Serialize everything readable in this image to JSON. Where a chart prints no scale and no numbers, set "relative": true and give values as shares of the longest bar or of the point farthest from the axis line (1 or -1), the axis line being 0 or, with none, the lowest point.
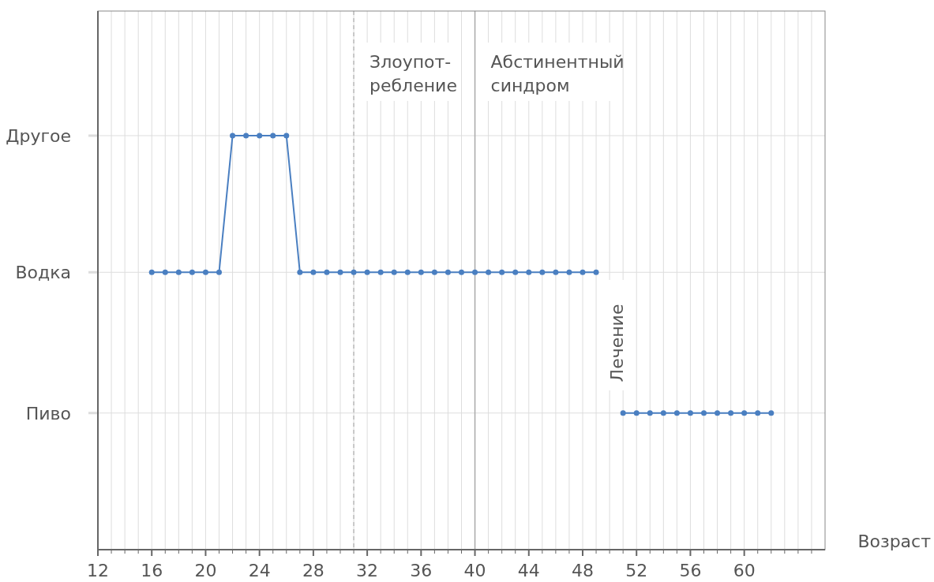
{
  "chart_data": {
    "type": "line",
    "xlabel": "Возраст",
    "color": "#4a7fc1",
    "marker": "circle",
    "line_style": "solid",
    "grid": "x",
    "x": [
      16,
      17,
      18,
      19,
      20,
      21,
      22,
      23,
      24,
      25,
      26,
      27,
      28,
      29,
      30,
      31,
      32,
      33,
      34,
      35,
      36,
      37,
      38,
      39,
      40,
      41,
      42,
      43,
      44,
      45,
      46,
      47,
      48,
      49,
      50,
      51,
      52,
      53,
      54,
      55,
      56,
      57,
      58,
      59,
      60,
      61,
      62
    ],
    "values": [
      0.67,
      0.67,
      0.67,
      0.67,
      0.67,
      0.67,
      1,
      1,
      1,
      1,
      1,
      0.67,
      0.67,
      0.67,
      0.67,
      0.67,
      0.67,
      0.67,
      0.67,
      0.67,
      0.67,
      0.67,
      0.67,
      0.67,
      0.67,
      0.67,
      0.67,
      0.67,
      0.67,
      0.67,
      0.67,
      0.67,
      0.67,
      0.67,
      null,
      0.33,
      0.33,
      0.33,
      0.33,
      0.33,
      0.33,
      0.33,
      0.33,
      0.33,
      0.33,
      0.33,
      0.33
    ],
    "relative": true,
    "xlim": [
      12,
      66
    ],
    "xticks": [
      12,
      {
        "value": 13,
        "label": null
      },
      {
        "value": 14,
        "label": null
      },
      {
        "value": 15,
        "label": null
      },
      16,
      {
        "value": 17,
        "label": null
      },
      {
        "value": 18,
        "label": null
      },
      {
        "value": 19,
        "label": null
      },
      20,
      {
        "value": 21,
        "label": null
      },
      {
        "value": 22,
        "label": null
      },
      {
        "value": 23,
        "label": null
      },
      24,
      {
        "value": 25,
        "label": null
      },
      {
        "value": 26,
        "label": null
      },
      {
        "value": 27,
        "label": null
      },
      28,
      {
        "value": 29,
        "label": null
      },
      {
        "value": 30,
        "label": null
      },
      {
        "value": 31,
        "label": null
      },
      32,
      {
        "value": 33,
        "label": null
      },
      {
        "value": 34,
        "label": null
      },
      {
        "value": 35,
        "label": null
      },
      36,
      {
        "value": 37,
        "label": null
      },
      {
        "value": 38,
        "label": null
      },
      {
        "value": 39,
        "label": null
      },
      40,
      {
        "value": 41,
        "label": null
      },
      {
        "value": 42,
        "label": null
      },
      {
        "value": 43,
        "label": null
      },
      44,
      {
        "value": 45,
        "label": null
      },
      {
        "value": 46,
        "label": null
      },
      {
        "value": 47,
        "label": null
      },
      48,
      {
        "value": 49,
        "label": null
      },
      {
        "value": 50,
        "label": null
      },
      {
        "value": 51,
        "label": null
      },
      52,
      {
        "value": 53,
        "label": null
      },
      {
        "value": 54,
        "label": null
      },
      {
        "value": 55,
        "label": null
      },
      56,
      {
        "value": 57,
        "label": null
      },
      {
        "value": 58,
        "label": null
      },
      {
        "value": 59,
        "label": null
      },
      60,
      {
        "value": 61,
        "label": null
      },
      {
        "value": 62,
        "label": null
      },
      {
        "value": 63,
        "label": null
      },
      {
        "value": 64,
        "label": null
      },
      {
        "value": 65,
        "label": null
      }
    ],
    "ref_lines": [
      {
        "axis": "y",
        "value": 1,
        "label": "Другое",
        "color": "#dddddd",
        "line_style": "solid"
      },
      {
        "axis": "y",
        "value": 0.67,
        "label": "Водка",
        "color": "#dddddd",
        "line_style": "solid"
      },
      {
        "axis": "y",
        "value": 0.33,
        "label": "Пиво",
        "color": "#dddddd",
        "line_style": "solid"
      },
      {
        "axis": "x",
        "value": 31,
        "label": "Злоупот-\nребление",
        "color": "#bbbbbb",
        "line_style": "dashed"
      },
      {
        "axis": "x",
        "value": 40,
        "label": "Абстинентный\nсиндром",
        "color": "#aaaaaa",
        "line_style": "solid"
      }
    ],
    "annotations": [
      "Лечение"
    ]
  }
}
